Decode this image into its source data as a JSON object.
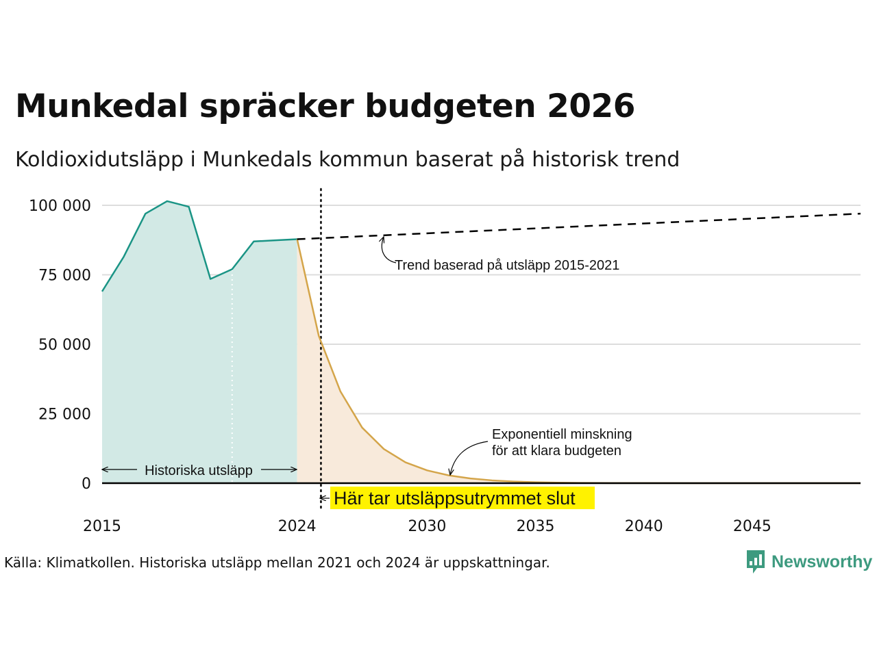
{
  "title": "Munkedal spräcker budgeten 2026",
  "subtitle": "Koldioxidutsläpp i Munkedals kommun baserat på historisk trend",
  "source": "Källa: Klimatkollen. Historiska utsläpp mellan 2021 och 2024 är uppskattningar.",
  "logo": {
    "text": "Newsworthy",
    "icon": "bar-chart-speech-bubble-icon"
  },
  "colors": {
    "historical_line": "#1a9485",
    "historical_fill": "#d2e9e5",
    "projection_line": "#d4a54a",
    "projection_fill": "#f8eadb",
    "highlight": "#fff200",
    "grid": "#dddddd",
    "logo": "#3d9a7f"
  },
  "chart_data": {
    "type": "area",
    "xlim": [
      2015,
      2050
    ],
    "ylim": [
      0,
      100000
    ],
    "x_ticks": [
      {
        "value": 2015,
        "label": "2015"
      },
      {
        "value": 2024,
        "label": "2024"
      },
      {
        "value": 2030,
        "label": "2030"
      },
      {
        "value": 2035,
        "label": "2035"
      },
      {
        "value": 2040,
        "label": "2040"
      },
      {
        "value": 2045,
        "label": "2045"
      }
    ],
    "y_ticks": [
      {
        "value": 0,
        "label": "0"
      },
      {
        "value": 25000,
        "label": "25 000"
      },
      {
        "value": 50000,
        "label": "50 000"
      },
      {
        "value": 75000,
        "label": "75 000"
      },
      {
        "value": 100000,
        "label": "100 000"
      }
    ],
    "grid": true,
    "series": [
      {
        "x": [
          2015,
          2016,
          2017,
          2018,
          2019,
          2020,
          2021,
          2022,
          2023,
          2024
        ],
        "y": [
          69000,
          81500,
          97000,
          101500,
          99500,
          73500,
          77000,
          87000,
          87400,
          87800
        ]
      },
      {
        "x": [
          2024,
          2025,
          2026,
          2027,
          2028,
          2029,
          2030,
          2031,
          2032,
          2033,
          2034,
          2035,
          2036,
          2037,
          2038,
          2040,
          2045,
          2050
        ],
        "y": [
          87800,
          53000,
          33000,
          20000,
          12300,
          7500,
          4600,
          2800,
          1700,
          1000,
          600,
          350,
          200,
          100,
          50,
          20,
          5,
          0
        ]
      },
      {
        "x": [
          2024,
          2050
        ],
        "y": [
          87800,
          97000
        ],
        "style": "dashed"
      }
    ],
    "reference_lines": [
      {
        "x": 2021,
        "style": "white-dotted"
      },
      {
        "x": 2025.1,
        "style": "black-dotted"
      }
    ],
    "annotations": {
      "trend": "Trend baserad på utsläpp 2015-2021",
      "exponential_line1": "Exponentiell minskning",
      "exponential_line2": "för att klara budgeten",
      "historical": "Historiska utsläpp",
      "budget_end": "Här tar utsläppsutrymmet slut"
    }
  }
}
